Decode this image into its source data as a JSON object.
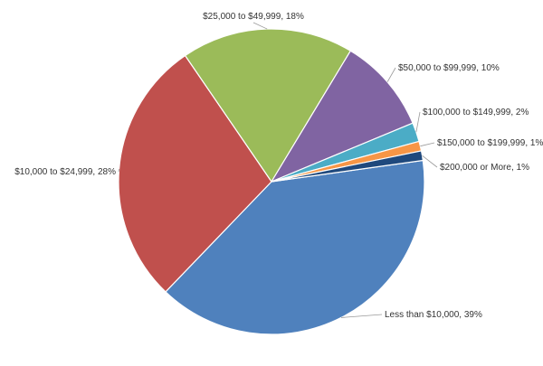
{
  "chart_data": {
    "type": "pie",
    "categories": [
      "Less than $10,000",
      "$10,000 to $24,999",
      "$25,000 to $49,999",
      "$50,000 to $99,999",
      "$100,000 to $149,999",
      "$150,000 to $199,999",
      "$200,000 or More"
    ],
    "values": [
      39,
      28,
      18,
      10,
      2,
      1,
      1
    ],
    "value_labels": [
      "39%",
      "28%",
      "18%",
      "10%",
      "2%",
      "1%",
      "1%"
    ],
    "label_separator": ", ",
    "colors": [
      "#4f81bd",
      "#c0504d",
      "#9bbb59",
      "#8064a2",
      "#4bacc6",
      "#f79646",
      "#1f497d"
    ]
  }
}
